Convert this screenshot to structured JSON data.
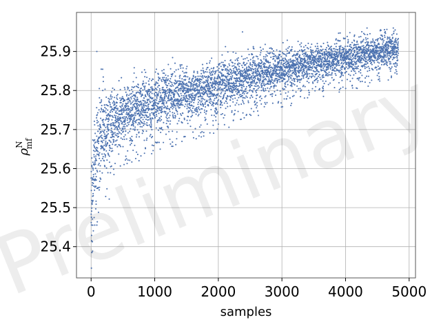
{
  "chart_data": {
    "type": "scatter",
    "xlabel": "samples",
    "ylabel_symbol": "ρ",
    "ylabel_superscript": "N",
    "ylabel_subscript": "mf",
    "watermark": "Preliminary",
    "xlim": [
      -230,
      5100
    ],
    "ylim": [
      25.32,
      26.0
    ],
    "xticks": [
      0,
      1000,
      2000,
      3000,
      4000,
      5000
    ],
    "yticks": [
      25.4,
      25.5,
      25.6,
      25.7,
      25.8,
      25.9
    ],
    "xtick_labels": [
      "0",
      "1000",
      "2000",
      "3000",
      "4000",
      "5000"
    ],
    "ytick_labels": [
      "25.4",
      "25.5",
      "25.6",
      "25.7",
      "25.8",
      "25.9"
    ],
    "grid": true,
    "marker_color": "#4c72b0",
    "series": [
      {
        "x_range": [
          0,
          4830
        ],
        "n_points": 4831,
        "trend": [
          [
            0,
            25.52
          ],
          [
            50,
            25.62
          ],
          [
            100,
            25.67
          ],
          [
            200,
            25.695
          ],
          [
            400,
            25.72
          ],
          [
            700,
            25.755
          ],
          [
            1000,
            25.775
          ],
          [
            1500,
            25.795
          ],
          [
            2000,
            25.815
          ],
          [
            2500,
            25.835
          ],
          [
            3000,
            25.855
          ],
          [
            3500,
            25.87
          ],
          [
            4000,
            25.885
          ],
          [
            4500,
            25.9
          ],
          [
            4830,
            25.91
          ]
        ],
        "spread": [
          [
            0,
            0.06
          ],
          [
            200,
            0.05
          ],
          [
            600,
            0.035
          ],
          [
            1000,
            0.035
          ],
          [
            2000,
            0.03
          ],
          [
            3000,
            0.025
          ],
          [
            4000,
            0.022
          ],
          [
            4830,
            0.02
          ]
        ],
        "notable_points": [
          {
            "x": 5,
            "y": 25.345
          },
          {
            "x": 12,
            "y": 25.385
          },
          {
            "x": 8,
            "y": 25.415
          },
          {
            "x": 25,
            "y": 25.455
          },
          {
            "x": 90,
            "y": 25.9
          },
          {
            "x": 2380,
            "y": 25.95
          },
          {
            "x": 4780,
            "y": 25.955
          }
        ]
      }
    ]
  }
}
